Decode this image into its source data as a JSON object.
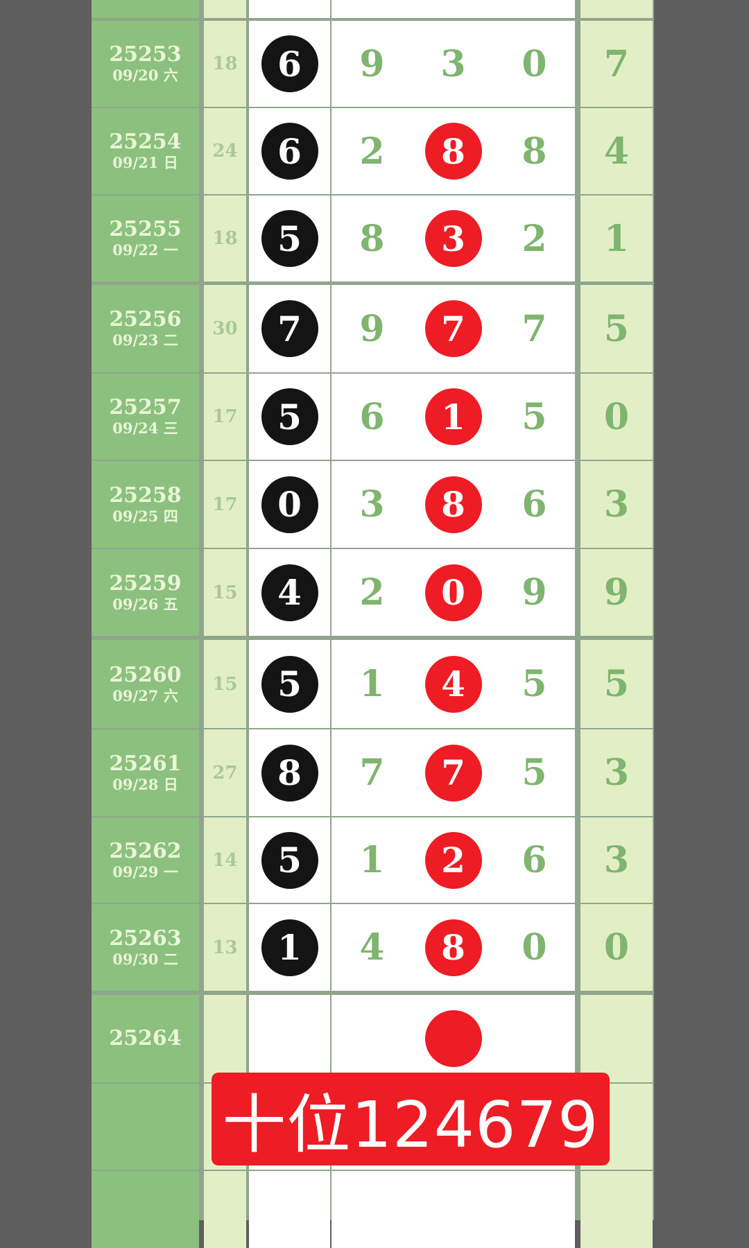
{
  "rows": [
    {
      "period": "",
      "date": "",
      "sum": "",
      "digits": [
        "",
        "",
        "",
        ""
      ],
      "last": "",
      "ball_colors": [
        "",
        "",
        "",
        ""
      ]
    },
    {
      "period": "25253",
      "date": "09/20 六",
      "sum": "18",
      "digits": [
        "6",
        "9",
        "3",
        "0"
      ],
      "last": "7",
      "ball_colors": [
        "black",
        "",
        "",
        ""
      ]
    },
    {
      "period": "25254",
      "date": "09/21 日",
      "sum": "24",
      "digits": [
        "6",
        "2",
        "8",
        "8"
      ],
      "last": "4",
      "ball_colors": [
        "black",
        "",
        "red",
        ""
      ]
    },
    {
      "period": "25255",
      "date": "09/22 一",
      "sum": "18",
      "digits": [
        "5",
        "8",
        "3",
        "2"
      ],
      "last": "1",
      "ball_colors": [
        "black",
        "",
        "red",
        ""
      ]
    },
    {
      "period": "25256",
      "date": "09/23 二",
      "sum": "30",
      "digits": [
        "7",
        "9",
        "7",
        "7"
      ],
      "last": "5",
      "ball_colors": [
        "black",
        "",
        "red",
        ""
      ]
    },
    {
      "period": "25257",
      "date": "09/24 三",
      "sum": "17",
      "digits": [
        "5",
        "6",
        "1",
        "5"
      ],
      "last": "0",
      "ball_colors": [
        "black",
        "",
        "red",
        ""
      ]
    },
    {
      "period": "25258",
      "date": "09/25 四",
      "sum": "17",
      "digits": [
        "0",
        "3",
        "8",
        "6"
      ],
      "last": "3",
      "ball_colors": [
        "black",
        "",
        "red",
        ""
      ]
    },
    {
      "period": "25259",
      "date": "09/26 五",
      "sum": "15",
      "digits": [
        "4",
        "2",
        "0",
        "9"
      ],
      "last": "9",
      "ball_colors": [
        "black",
        "",
        "red",
        ""
      ]
    },
    {
      "period": "25260",
      "date": "09/27 六",
      "sum": "15",
      "digits": [
        "5",
        "1",
        "4",
        "5"
      ],
      "last": "5",
      "ball_colors": [
        "black",
        "",
        "red",
        ""
      ]
    },
    {
      "period": "25261",
      "date": "09/28 日",
      "sum": "27",
      "digits": [
        "8",
        "7",
        "7",
        "5"
      ],
      "last": "3",
      "ball_colors": [
        "black",
        "",
        "red",
        ""
      ]
    },
    {
      "period": "25262",
      "date": "09/29 一",
      "sum": "14",
      "digits": [
        "5",
        "1",
        "2",
        "6"
      ],
      "last": "3",
      "ball_colors": [
        "black",
        "",
        "red",
        ""
      ]
    },
    {
      "period": "25263",
      "date": "09/30 二",
      "sum": "13",
      "digits": [
        "1",
        "4",
        "8",
        "0"
      ],
      "last": "0",
      "ball_colors": [
        "black",
        "",
        "red",
        ""
      ]
    },
    {
      "period": "25264",
      "date": "",
      "sum": "",
      "digits": [
        "",
        "",
        "",
        ""
      ],
      "last": "",
      "ball_colors": [
        "",
        "",
        "red",
        ""
      ]
    },
    {
      "period": "",
      "date": "",
      "sum": "",
      "digits": [
        "",
        "",
        "",
        ""
      ],
      "last": "",
      "ball_colors": [
        "",
        "",
        "",
        ""
      ]
    },
    {
      "period": "",
      "date": "",
      "sum": "",
      "digits": [
        "",
        "",
        "",
        ""
      ],
      "last": "",
      "ball_colors": [
        "",
        "",
        "",
        ""
      ]
    }
  ],
  "banner": {
    "text": "十位124679"
  },
  "colors": {
    "red_ball": "#ee1c24",
    "black_ball": "#141414",
    "period_bg": "#8cc07e",
    "side_bg": "#e2efc6",
    "digit": "#7fb56f"
  }
}
